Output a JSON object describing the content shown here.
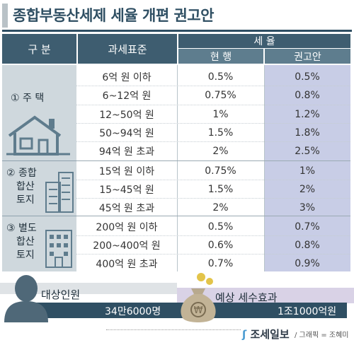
{
  "title": "종합부동산세제 세율 개편 권고안",
  "header": {
    "category": "구  분",
    "base": "과세표준",
    "rate": "세  율",
    "current": "현 행",
    "proposal": "권고안"
  },
  "groups": [
    {
      "label_lines": [
        "① 주     택"
      ],
      "rows": [
        {
          "base": "6억 원 이하",
          "current": "0.5%",
          "proposal": "0.5%"
        },
        {
          "base": "6~12억 원",
          "current": "0.75%",
          "proposal": "0.8%"
        },
        {
          "base": "12~50억 원",
          "current": "1%",
          "proposal": "1.2%"
        },
        {
          "base": "50~94억 원",
          "current": "1.5%",
          "proposal": "1.8%"
        },
        {
          "base": "94억 원 초과",
          "current": "2%",
          "proposal": "2.5%"
        }
      ]
    },
    {
      "label_lines": [
        "② 종합",
        "합산",
        "토지"
      ],
      "rows": [
        {
          "base": "15억 원 이하",
          "current": "0.75%",
          "proposal": "1%"
        },
        {
          "base": "15~45억 원",
          "current": "1.5%",
          "proposal": "2%"
        },
        {
          "base": "45억 원 초과",
          "current": "2%",
          "proposal": "3%"
        }
      ]
    },
    {
      "label_lines": [
        "③ 별도",
        "합산",
        "토지"
      ],
      "rows": [
        {
          "base": "200억 원 이하",
          "current": "0.5%",
          "proposal": "0.7%"
        },
        {
          "base": "200~400억 원",
          "current": "0.6%",
          "proposal": "0.8%"
        },
        {
          "base": "400억 원 초과",
          "current": "0.7%",
          "proposal": "0.9%"
        }
      ]
    }
  ],
  "summary": {
    "targets_label": "대상인원",
    "targets_value": "34만6000명",
    "effect_label": "예상 세수효과",
    "effect_value": "1조1000억원"
  },
  "footer": {
    "brand": "조세일보",
    "credit": "/ 그래픽 = 조혜미"
  },
  "colors": {
    "header": "#3e5d70",
    "category_col": "#cfd8dd",
    "proposal_col": "#c8cde6",
    "accent": "#2f4f63"
  }
}
